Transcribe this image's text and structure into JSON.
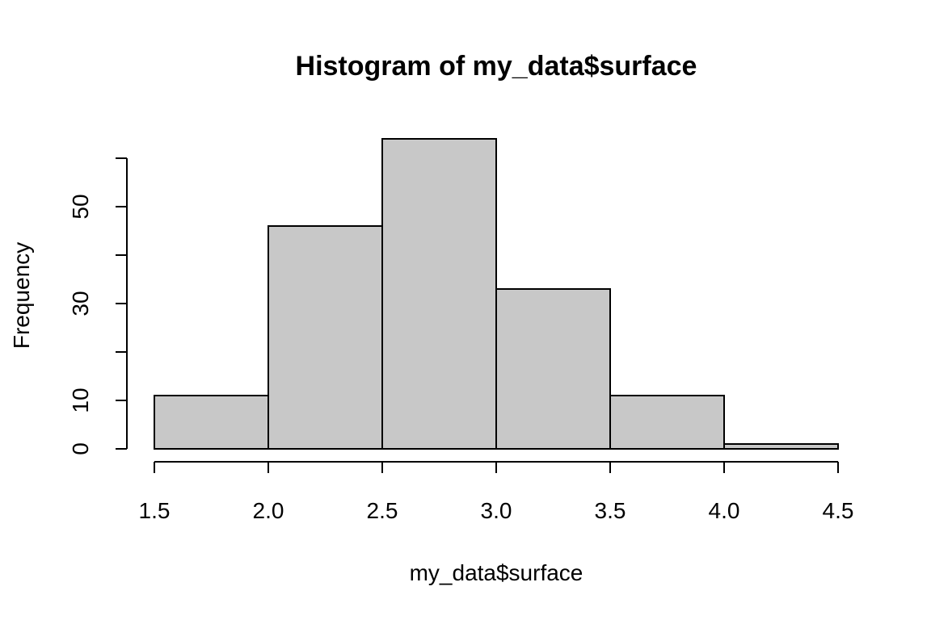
{
  "chart_data": {
    "type": "bar",
    "title": "Histogram of my_data$surface",
    "xlabel": "my_data$surface",
    "ylabel": "Frequency",
    "bins": [
      {
        "x0": 1.5,
        "x1": 2.0,
        "count": 11
      },
      {
        "x0": 2.0,
        "x1": 2.5,
        "count": 46
      },
      {
        "x0": 2.5,
        "x1": 3.0,
        "count": 64
      },
      {
        "x0": 3.0,
        "x1": 3.5,
        "count": 33
      },
      {
        "x0": 3.5,
        "x1": 4.0,
        "count": 11
      },
      {
        "x0": 4.0,
        "x1": 4.5,
        "count": 1
      }
    ],
    "x_ticks": [
      1.5,
      2.0,
      2.5,
      3.0,
      3.5,
      4.0,
      4.5
    ],
    "x_tick_labels": [
      "1.5",
      "2.0",
      "2.5",
      "3.0",
      "3.5",
      "4.0",
      "4.5"
    ],
    "y_ticks": [
      0,
      10,
      20,
      30,
      40,
      50,
      60
    ],
    "y_tick_labels": [
      "0",
      "10",
      "",
      "30",
      "",
      "50",
      ""
    ],
    "xlim": [
      1.5,
      4.5
    ],
    "ylim": [
      0,
      64
    ],
    "bar_color": "#c8c8c8",
    "grid": false
  }
}
